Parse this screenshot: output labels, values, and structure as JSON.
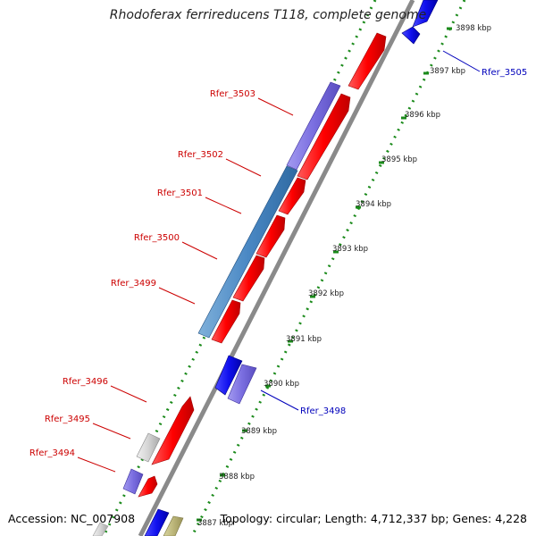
{
  "title": "Rhodoferax ferrireducens T118, complete genome",
  "accession": "Accession: NC_007908",
  "summary": "Topology: circular; Length: 4,712,337 bp; Genes: 4,228",
  "colors": {
    "backbone": "#8a8a8a",
    "ticks": "#1a8a1a",
    "forward_gene": "#ff1a1a",
    "reverse_gene": "#1515ee",
    "label_red": "#cc0000",
    "label_blue": "#0000bb"
  },
  "scale_labels": [
    "3898 kbp",
    "3897 kbp",
    "3896 kbp",
    "3895 kbp",
    "3894 kbp",
    "3893 kbp",
    "3892 kbp",
    "3891 kbp",
    "3890 kbp",
    "3889 kbp",
    "3888 kbp",
    "3887 kbp"
  ],
  "gene_labels": [
    {
      "name": "Rfer_3505",
      "side": "right"
    },
    {
      "name": "Rfer_3503",
      "side": "left"
    },
    {
      "name": "Rfer_3502",
      "side": "left"
    },
    {
      "name": "Rfer_3501",
      "side": "left"
    },
    {
      "name": "Rfer_3500",
      "side": "left"
    },
    {
      "name": "Rfer_3499",
      "side": "left"
    },
    {
      "name": "Rfer_3498",
      "side": "right"
    },
    {
      "name": "Rfer_3496",
      "side": "left"
    },
    {
      "name": "Rfer_3495",
      "side": "left"
    },
    {
      "name": "Rfer_3494",
      "side": "left"
    }
  ]
}
